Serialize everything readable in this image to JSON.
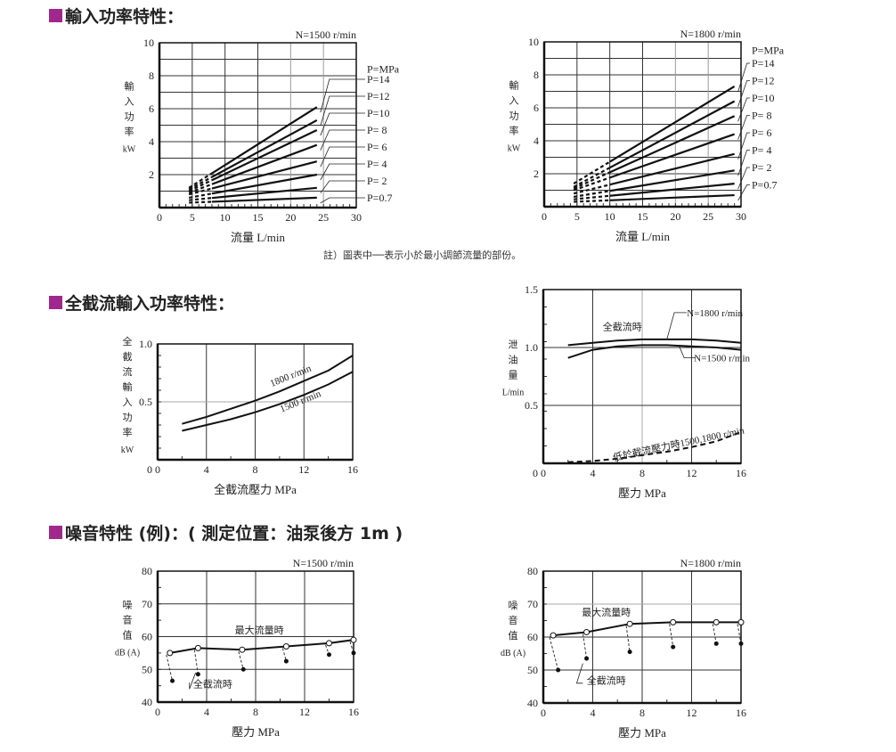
{
  "theme": {
    "accent": "#a0288c"
  },
  "sections": {
    "input_power": {
      "title": "輸入功率特性："
    },
    "deadhead_power": {
      "title": "全截流輸入功率特性："
    },
    "noise": {
      "title": "噪音特性 (例)：( 測定位置：油泵後方 1m )"
    }
  },
  "note": "註）圖表中──表示小於最小調節流量的部份。",
  "chart_data": [
    {
      "id": "input_power_1500",
      "type": "line",
      "title": "N=1500 r/min",
      "xlabel": "流量 L/min",
      "ylabel": "輸入功率 kW",
      "xlim": [
        0,
        30
      ],
      "ylim": [
        0,
        10
      ],
      "xticks": [
        0,
        5,
        10,
        15,
        20,
        25,
        30
      ],
      "yticks": [
        0,
        2,
        4,
        6,
        8,
        10
      ],
      "grid": true,
      "legend_title": "P=MPa",
      "dashed_range_x": [
        4.5,
        8
      ],
      "series": [
        {
          "name": "P=14",
          "x": [
            4.5,
            24
          ],
          "y": [
            1.2,
            6.1
          ]
        },
        {
          "name": "P=12",
          "x": [
            4.5,
            24
          ],
          "y": [
            1.1,
            5.3
          ]
        },
        {
          "name": "P=10",
          "x": [
            4.5,
            24
          ],
          "y": [
            1.0,
            4.7
          ]
        },
        {
          "name": "P= 8",
          "x": [
            4.5,
            24
          ],
          "y": [
            0.9,
            3.8
          ]
        },
        {
          "name": "P= 6",
          "x": [
            4.5,
            24
          ],
          "y": [
            0.8,
            2.8
          ]
        },
        {
          "name": "P= 4",
          "x": [
            4.5,
            24
          ],
          "y": [
            0.6,
            2.0
          ]
        },
        {
          "name": "P= 2",
          "x": [
            4.5,
            24
          ],
          "y": [
            0.45,
            1.2
          ]
        },
        {
          "name": "P=0.7",
          "x": [
            4.5,
            24
          ],
          "y": [
            0.3,
            0.6
          ]
        }
      ]
    },
    {
      "id": "input_power_1800",
      "type": "line",
      "title": "N=1800 r/min",
      "xlabel": "流量 L/min",
      "ylabel": "輸入功率 kW",
      "xlim": [
        0,
        30
      ],
      "ylim": [
        0,
        10
      ],
      "xticks": [
        0,
        5,
        10,
        15,
        20,
        25,
        30
      ],
      "yticks": [
        0,
        2,
        4,
        6,
        8,
        10
      ],
      "grid": true,
      "legend_title": "P=MPa",
      "dashed_range_x": [
        4.5,
        10
      ],
      "series": [
        {
          "name": "P=14",
          "x": [
            4.5,
            29
          ],
          "y": [
            1.4,
            7.3
          ]
        },
        {
          "name": "P=12",
          "x": [
            4.5,
            29
          ],
          "y": [
            1.2,
            6.4
          ]
        },
        {
          "name": "P=10",
          "x": [
            4.5,
            29
          ],
          "y": [
            1.1,
            5.5
          ]
        },
        {
          "name": "P= 8",
          "x": [
            4.5,
            29
          ],
          "y": [
            1.0,
            4.4
          ]
        },
        {
          "name": "P= 6",
          "x": [
            4.5,
            29
          ],
          "y": [
            0.8,
            3.2
          ]
        },
        {
          "name": "P= 4",
          "x": [
            4.5,
            29
          ],
          "y": [
            0.6,
            2.2
          ]
        },
        {
          "name": "P= 2",
          "x": [
            4.5,
            29
          ],
          "y": [
            0.45,
            1.4
          ]
        },
        {
          "name": "P=0.7",
          "x": [
            4.5,
            29
          ],
          "y": [
            0.3,
            0.7
          ]
        }
      ]
    },
    {
      "id": "deadhead_input_power",
      "type": "line",
      "title": "",
      "xlabel": "全截流壓力 MPa",
      "ylabel": "全截流輸入功率 kW",
      "xlim": [
        0,
        16
      ],
      "ylim": [
        0,
        1.0
      ],
      "xticks": [
        0,
        4,
        8,
        12,
        16
      ],
      "yticks": [
        0.5,
        1.0
      ],
      "ytick_labels": [
        "0.5",
        "1.0"
      ],
      "grid": true,
      "series": [
        {
          "name": "1800 r/min",
          "x": [
            2,
            4,
            6,
            8,
            10,
            12,
            14,
            16
          ],
          "y": [
            0.31,
            0.37,
            0.44,
            0.51,
            0.59,
            0.68,
            0.77,
            0.9
          ]
        },
        {
          "name": "1500 r/min",
          "x": [
            2,
            4,
            6,
            8,
            10,
            12,
            14,
            16
          ],
          "y": [
            0.25,
            0.3,
            0.35,
            0.41,
            0.48,
            0.56,
            0.65,
            0.76
          ]
        }
      ]
    },
    {
      "id": "drain_flow",
      "type": "line",
      "title": "",
      "xlabel": "壓力 MPa",
      "ylabel": "泄油量 L/min",
      "xlim": [
        0,
        16
      ],
      "ylim": [
        0,
        1.5
      ],
      "xticks": [
        0,
        4,
        8,
        12,
        16
      ],
      "yticks": [
        0.5,
        1.0,
        1.5
      ],
      "ytick_labels": [
        "0.5",
        "1.0",
        "1.5"
      ],
      "grid": true,
      "annotations": [
        "全截流時",
        "N=1800 r/min",
        "N=1500 r/min",
        "低於截流壓力時1500,1800 r/min"
      ],
      "series": [
        {
          "name": "N=1800 r/min",
          "style": "solid",
          "x": [
            2,
            4,
            6,
            8,
            10,
            12,
            14,
            16
          ],
          "y": [
            1.02,
            1.04,
            1.06,
            1.07,
            1.07,
            1.07,
            1.06,
            1.04
          ]
        },
        {
          "name": "N=1500 r/min",
          "style": "solid",
          "x": [
            2,
            4,
            6,
            8,
            10,
            12,
            14,
            16
          ],
          "y": [
            0.91,
            0.98,
            1.01,
            1.02,
            1.02,
            1.01,
            1.0,
            0.98
          ]
        },
        {
          "name": "低於截流壓力時1500,1800 r/min",
          "style": "dashed",
          "x": [
            2,
            4,
            6,
            8,
            10,
            12,
            14,
            16
          ],
          "y": [
            0.01,
            0.02,
            0.04,
            0.07,
            0.1,
            0.14,
            0.19,
            0.27
          ]
        }
      ]
    },
    {
      "id": "noise_1500",
      "type": "line",
      "title": "N=1500 r/min",
      "xlabel": "壓力 MPa",
      "ylabel": "噪音值 dB (A)",
      "xlim": [
        0,
        16
      ],
      "ylim": [
        40,
        80
      ],
      "xticks": [
        0,
        4,
        8,
        12,
        16
      ],
      "yticks": [
        40,
        50,
        60,
        70,
        80
      ],
      "grid": true,
      "series": [
        {
          "name": "最大流量時",
          "marker": "open-circle",
          "x": [
            1,
            3.3,
            6.9,
            10.5,
            14,
            16
          ],
          "y": [
            55,
            56.5,
            56,
            57,
            58,
            59
          ]
        },
        {
          "name": "全截流時",
          "marker": "filled-circle",
          "x": [
            1.2,
            3.3,
            7,
            10.5,
            14,
            16
          ],
          "y": [
            46.5,
            48.5,
            50,
            52.5,
            54.5,
            55
          ]
        }
      ]
    },
    {
      "id": "noise_1800",
      "type": "line",
      "title": "N=1800 r/min",
      "xlabel": "壓力 MPa",
      "ylabel": "噪音值 dB (A)",
      "xlim": [
        0,
        16
      ],
      "ylim": [
        40,
        80
      ],
      "xticks": [
        0,
        4,
        8,
        12,
        16
      ],
      "yticks": [
        40,
        50,
        60,
        70,
        80
      ],
      "grid": true,
      "series": [
        {
          "name": "最大流量時",
          "marker": "open-circle",
          "x": [
            0.8,
            3.5,
            7,
            10.5,
            14,
            16
          ],
          "y": [
            60.5,
            61.5,
            64,
            64.5,
            64.5,
            64.5
          ]
        },
        {
          "name": "全截流時",
          "marker": "filled-circle",
          "x": [
            1.2,
            3.5,
            7,
            10.5,
            14,
            16
          ],
          "y": [
            50,
            53.5,
            55.5,
            57,
            58,
            58
          ]
        }
      ]
    }
  ]
}
